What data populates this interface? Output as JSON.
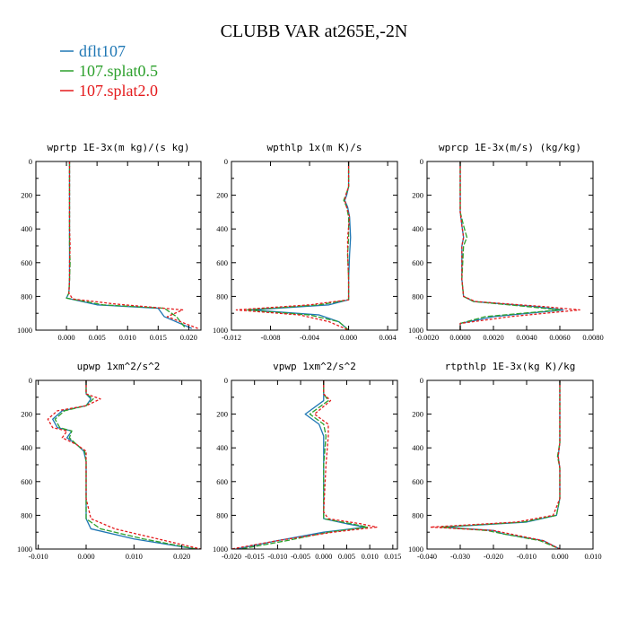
{
  "title": "CLUBB VAR at265E,-2N",
  "legend": [
    {
      "label": "dflt107",
      "color": "#1f77b4"
    },
    {
      "label": "107.splat0.5",
      "color": "#2ca02c"
    },
    {
      "label": "107.splat2.0",
      "color": "#e41a1c"
    }
  ],
  "chart_data": [
    {
      "type": "line",
      "title": "wprtp  1E-3x(m kg)/(s kg)",
      "xlim": [
        -0.005,
        0.022
      ],
      "ylim": [
        1000,
        0
      ],
      "xticks": [
        0.0,
        0.005,
        0.01,
        0.015,
        0.02
      ],
      "xtick_labels": [
        "0.000",
        "0.005",
        "0.010",
        "0.015",
        "0.020"
      ],
      "yticks": [
        0,
        200,
        400,
        600,
        800,
        1000
      ],
      "ytick_labels": [
        "0",
        "200",
        "400",
        "600",
        "800",
        "1000"
      ],
      "series": [
        {
          "name": "dflt107",
          "x": [
            0.0005,
            0.0005,
            0.0005,
            0.0005,
            0.0005,
            0.0005,
            0.0004,
            0.0,
            0.005,
            0.015,
            0.016,
            0.0205
          ],
          "y": [
            0,
            200,
            400,
            500,
            600,
            700,
            780,
            810,
            850,
            870,
            920,
            990
          ]
        },
        {
          "name": "107.splat0.5",
          "x": [
            0.0005,
            0.0005,
            0.0005,
            0.0005,
            0.0006,
            0.0005,
            0.0004,
            0.0,
            0.006,
            0.016,
            0.018,
            0.0195
          ],
          "y": [
            0,
            200,
            400,
            500,
            600,
            700,
            780,
            810,
            850,
            870,
            920,
            990
          ]
        },
        {
          "name": "107.splat2.0",
          "x": [
            0.0005,
            0.0005,
            0.0005,
            0.0006,
            0.0005,
            0.0005,
            0.0004,
            0.001,
            0.008,
            0.019,
            0.0165,
            0.0215
          ],
          "y": [
            0,
            200,
            400,
            500,
            600,
            700,
            780,
            815,
            845,
            880,
            920,
            990
          ]
        }
      ]
    },
    {
      "type": "line",
      "title": "wpthlp  1x(m K)/s",
      "xlim": [
        -0.012,
        0.005
      ],
      "ylim": [
        1000,
        0
      ],
      "xticks": [
        -0.012,
        -0.008,
        -0.004,
        0.0,
        0.004
      ],
      "xtick_labels": [
        "-0.012",
        "-0.008",
        "-0.004",
        "0.000",
        "0.004"
      ],
      "yticks": [
        0,
        200,
        400,
        600,
        800,
        1000
      ],
      "ytick_labels": [
        "0",
        "200",
        "400",
        "600",
        "800",
        "1000"
      ],
      "series": [
        {
          "name": "dflt107",
          "x": [
            0.0,
            0.0,
            -0.0002,
            -0.0004,
            -0.0001,
            0.0001,
            0.0002,
            0.0001,
            0.0,
            0.0,
            -0.002,
            -0.01,
            -0.003,
            -0.001,
            0.0
          ],
          "y": [
            0,
            150,
            200,
            230,
            270,
            330,
            450,
            550,
            700,
            820,
            850,
            880,
            910,
            950,
            1000
          ]
        },
        {
          "name": "107.splat0.5",
          "x": [
            0.0,
            0.0,
            -0.0003,
            -0.0005,
            -0.0002,
            0.0,
            0.0,
            -0.0001,
            0.0,
            0.0,
            -0.003,
            -0.0105,
            -0.004,
            -0.001,
            0.0
          ],
          "y": [
            0,
            150,
            200,
            230,
            270,
            330,
            450,
            550,
            700,
            820,
            850,
            880,
            910,
            950,
            1000
          ]
        },
        {
          "name": "107.splat2.0",
          "x": [
            0.0,
            0.0,
            -0.0003,
            -0.0004,
            -0.0002,
            0.0001,
            -0.0001,
            -0.0001,
            0.0,
            0.0,
            -0.004,
            -0.0115,
            -0.005,
            -0.002,
            0.0
          ],
          "y": [
            0,
            150,
            200,
            230,
            270,
            330,
            450,
            550,
            700,
            820,
            850,
            880,
            910,
            950,
            1000
          ]
        }
      ]
    },
    {
      "type": "line",
      "title": "wprcp  1E-3x(m/s) (kg/kg)",
      "xlim": [
        -0.002,
        0.008
      ],
      "ylim": [
        1000,
        0
      ],
      "xticks": [
        -0.002,
        0.0,
        0.002,
        0.004,
        0.006,
        0.008
      ],
      "xtick_labels": [
        "-0.0020",
        "0.0000",
        "0.0020",
        "0.0040",
        "0.0060",
        "0.0080"
      ],
      "yticks": [
        0,
        200,
        400,
        600,
        800,
        1000
      ],
      "ytick_labels": [
        "0",
        "200",
        "400",
        "600",
        "800",
        "1000"
      ],
      "series": [
        {
          "name": "dflt107",
          "x": [
            0.0,
            0.0,
            0.0001,
            0.0002,
            0.0001,
            0.0001,
            0.0002,
            0.0008,
            0.0045,
            0.0062,
            0.002,
            0.0,
            0.0
          ],
          "y": [
            0,
            300,
            380,
            450,
            500,
            700,
            800,
            830,
            860,
            880,
            920,
            960,
            1000
          ]
        },
        {
          "name": "107.splat0.5",
          "x": [
            0.0,
            0.0,
            0.0002,
            0.0004,
            0.0002,
            0.0001,
            0.0002,
            0.0008,
            0.004,
            0.006,
            0.0015,
            0.0,
            0.0
          ],
          "y": [
            0,
            300,
            380,
            450,
            500,
            700,
            800,
            830,
            860,
            880,
            920,
            960,
            1000
          ]
        },
        {
          "name": "107.splat2.0",
          "x": [
            0.0,
            0.0,
            0.0001,
            0.0002,
            0.0001,
            0.0001,
            0.0002,
            0.0009,
            0.005,
            0.0072,
            0.003,
            0.0,
            0.0
          ],
          "y": [
            0,
            300,
            380,
            450,
            500,
            700,
            800,
            830,
            860,
            880,
            920,
            960,
            1000
          ]
        }
      ]
    },
    {
      "type": "line",
      "title": "upwp  1xm^2/s^2",
      "xlim": [
        -0.0105,
        0.024
      ],
      "ylim": [
        1000,
        0
      ],
      "xticks": [
        -0.01,
        0.0,
        0.01,
        0.02
      ],
      "xtick_labels": [
        "-0.010",
        "0.000",
        "0.010",
        "0.020"
      ],
      "yticks": [
        0,
        200,
        400,
        600,
        800,
        1000
      ],
      "ytick_labels": [
        "0",
        "200",
        "400",
        "600",
        "800",
        "1000"
      ],
      "series": [
        {
          "name": "dflt107",
          "x": [
            0.0,
            0.0,
            0.001,
            0.0,
            -0.005,
            -0.007,
            -0.006,
            -0.003,
            -0.004,
            -0.002,
            -0.0005,
            0.0,
            0.0,
            0.0,
            0.001,
            0.01,
            0.023
          ],
          "y": [
            0,
            80,
            110,
            150,
            180,
            230,
            280,
            300,
            340,
            380,
            420,
            480,
            700,
            820,
            880,
            940,
            1000
          ]
        },
        {
          "name": "107.splat0.5",
          "x": [
            0.0,
            0.0,
            0.0015,
            0.0,
            -0.0045,
            -0.0065,
            -0.0055,
            -0.003,
            -0.0035,
            -0.002,
            -0.0003,
            0.0,
            0.0,
            0.0,
            0.003,
            0.012,
            0.023
          ],
          "y": [
            0,
            80,
            110,
            150,
            180,
            230,
            280,
            300,
            340,
            380,
            420,
            480,
            700,
            820,
            880,
            940,
            1000
          ]
        },
        {
          "name": "107.splat2.0",
          "x": [
            0.0,
            0.0,
            0.003,
            0.0,
            -0.006,
            -0.008,
            -0.007,
            -0.004,
            -0.005,
            -0.002,
            0.0,
            0.0,
            0.0,
            0.001,
            0.006,
            0.015,
            0.024
          ],
          "y": [
            0,
            80,
            110,
            150,
            180,
            230,
            280,
            300,
            340,
            380,
            420,
            480,
            700,
            820,
            880,
            940,
            1000
          ]
        }
      ]
    },
    {
      "type": "line",
      "title": "vpwp  1xm^2/s^2",
      "xlim": [
        -0.02,
        0.016
      ],
      "ylim": [
        1000,
        0
      ],
      "xticks": [
        -0.02,
        -0.015,
        -0.01,
        -0.005,
        0.0,
        0.005,
        0.01,
        0.015
      ],
      "xtick_labels": [
        "-0.020",
        "-0.015",
        "-0.010",
        "-0.005",
        "0.000",
        "0.005",
        "0.010",
        "0.015"
      ],
      "yticks": [
        0,
        200,
        400,
        600,
        800,
        1000
      ],
      "ytick_labels": [
        "0",
        "200",
        "400",
        "600",
        "800",
        "1000"
      ],
      "series": [
        {
          "name": "dflt107",
          "x": [
            0.0,
            0.0,
            0.0,
            -0.004,
            -0.001,
            0.0,
            0.0,
            0.0,
            0.0,
            0.005,
            0.009,
            0.0,
            -0.01,
            -0.019
          ],
          "y": [
            0,
            80,
            120,
            200,
            260,
            330,
            500,
            780,
            820,
            850,
            870,
            900,
            950,
            1000
          ]
        },
        {
          "name": "107.splat0.5",
          "x": [
            0.0,
            0.0,
            0.001,
            -0.003,
            0.0,
            0.0005,
            0.0,
            0.0,
            0.0,
            0.006,
            0.0095,
            0.001,
            -0.008,
            -0.018
          ],
          "y": [
            0,
            80,
            120,
            200,
            260,
            330,
            500,
            780,
            820,
            850,
            870,
            900,
            950,
            1000
          ]
        },
        {
          "name": "107.splat2.0",
          "x": [
            0.0,
            0.0,
            0.0015,
            -0.002,
            0.001,
            0.001,
            0.0005,
            0.0,
            0.001,
            0.008,
            0.0115,
            0.002,
            -0.01,
            -0.02
          ],
          "y": [
            0,
            80,
            120,
            200,
            260,
            330,
            500,
            780,
            820,
            850,
            870,
            900,
            950,
            1000
          ]
        }
      ]
    },
    {
      "type": "line",
      "title": "rtpthlp  1E-3x(kg K)/kg",
      "xlim": [
        -0.04,
        0.01
      ],
      "ylim": [
        1000,
        0
      ],
      "xticks": [
        -0.04,
        -0.03,
        -0.02,
        -0.01,
        0.0,
        0.01
      ],
      "xtick_labels": [
        "-0.040",
        "-0.030",
        "-0.020",
        "-0.010",
        "0.000",
        "0.010"
      ],
      "yticks": [
        0,
        200,
        400,
        600,
        800,
        1000
      ],
      "ytick_labels": [
        "0",
        "200",
        "400",
        "600",
        "800",
        "1000"
      ],
      "series": [
        {
          "name": "dflt107",
          "x": [
            0.0,
            0.0,
            -0.0005,
            0.0,
            0.0,
            -0.001,
            -0.01,
            -0.035,
            -0.02,
            -0.017,
            -0.005,
            0.0
          ],
          "y": [
            0,
            370,
            450,
            520,
            700,
            800,
            840,
            870,
            890,
            910,
            950,
            1000
          ]
        },
        {
          "name": "107.splat0.5",
          "x": [
            0.0,
            0.0,
            -0.0007,
            0.0,
            0.0,
            -0.001,
            -0.011,
            -0.036,
            -0.022,
            -0.017,
            -0.006,
            0.0
          ],
          "y": [
            0,
            370,
            450,
            520,
            700,
            800,
            840,
            870,
            890,
            910,
            950,
            1000
          ]
        },
        {
          "name": "107.splat2.0",
          "x": [
            0.0,
            0.0,
            -0.0005,
            0.0,
            0.0,
            -0.002,
            -0.013,
            -0.039,
            -0.02,
            -0.015,
            -0.005,
            0.0
          ],
          "y": [
            0,
            370,
            450,
            520,
            700,
            800,
            840,
            870,
            890,
            910,
            950,
            1000
          ]
        }
      ]
    }
  ]
}
